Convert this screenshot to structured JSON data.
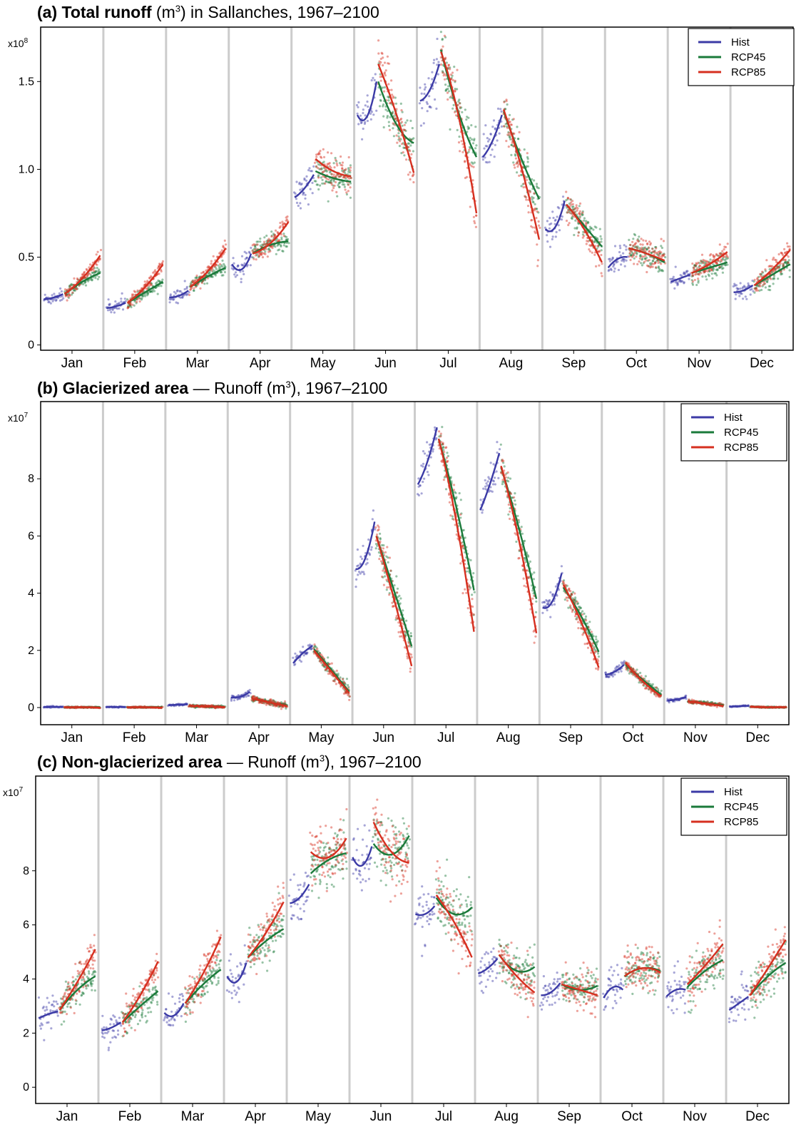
{
  "colors": {
    "hist": "#3b3aa6",
    "rcp45": "#1a7a3a",
    "rcp85": "#d62f1f",
    "separator": "#cccccc"
  },
  "legend": [
    "Hist",
    "RCP45",
    "RCP85"
  ],
  "months": [
    "Jan",
    "Feb",
    "Mar",
    "Apr",
    "May",
    "Jun",
    "Jul",
    "Aug",
    "Sep",
    "Oct",
    "Nov",
    "Dec"
  ],
  "panels": [
    {
      "title_bold": "(a) Total runoff",
      "title_rest": " (m",
      "title_sup": "3",
      "title_tail": ") in Sallanches, 1967–2100",
      "multiplier_base": "x10",
      "multiplier_exp": "8"
    },
    {
      "title_bold": "(b) Glacierized area",
      "title_rest": " — Runoff (m",
      "title_sup": "3",
      "title_tail": "), 1967–2100",
      "multiplier_base": "x10",
      "multiplier_exp": "7"
    },
    {
      "title_bold": "(c) Non-glacierized area",
      "title_rest": " — Runoff (m",
      "title_sup": "3",
      "title_tail": "), 1967–2100",
      "multiplier_base": "x10",
      "multiplier_exp": "7"
    }
  ],
  "chart_data": [
    {
      "type": "scatter",
      "title": "(a) Total runoff (m3) in Sallanches, 1967–2100",
      "categories": [
        "Jan",
        "Feb",
        "Mar",
        "Apr",
        "May",
        "Jun",
        "Jul",
        "Aug",
        "Sep",
        "Oct",
        "Nov",
        "Dec"
      ],
      "y_multiplier": "x10^8",
      "ylim": [
        -0.03,
        1.81
      ],
      "yticks": [
        0,
        0.5,
        1.0,
        1.5
      ],
      "ytick_labels": [
        "0",
        "0.5",
        "1.0",
        "1.5"
      ],
      "legend_position": "top-right",
      "grid": false,
      "x_within_month": "year 1967–2100",
      "series": [
        {
          "name": "Hist",
          "period": [
            1967,
            2005
          ],
          "start": [
            0.26,
            0.21,
            0.27,
            0.46,
            0.84,
            1.31,
            1.39,
            1.07,
            0.66,
            0.44,
            0.36,
            0.3
          ],
          "mid": [
            0.27,
            0.22,
            0.28,
            0.43,
            0.89,
            1.3,
            1.45,
            1.16,
            0.67,
            0.49,
            0.38,
            0.31
          ],
          "end": [
            0.29,
            0.24,
            0.31,
            0.52,
            0.97,
            1.5,
            1.6,
            1.31,
            0.82,
            0.5,
            0.4,
            0.34
          ]
        },
        {
          "name": "RCP45",
          "period": [
            2006,
            2100
          ],
          "start": [
            0.29,
            0.24,
            0.33,
            0.52,
            0.99,
            1.5,
            1.68,
            1.33,
            0.8,
            0.55,
            0.41,
            0.34
          ],
          "mid": [
            0.36,
            0.3,
            0.39,
            0.57,
            0.95,
            1.26,
            1.32,
            1.06,
            0.68,
            0.52,
            0.44,
            0.4
          ],
          "end": [
            0.41,
            0.36,
            0.44,
            0.59,
            0.93,
            1.15,
            1.07,
            0.83,
            0.56,
            0.47,
            0.47,
            0.46
          ]
        },
        {
          "name": "RCP85",
          "period": [
            2006,
            2100
          ],
          "start": [
            0.29,
            0.24,
            0.33,
            0.52,
            1.06,
            1.6,
            1.67,
            1.34,
            0.8,
            0.55,
            0.41,
            0.34
          ],
          "mid": [
            0.38,
            0.33,
            0.42,
            0.58,
            0.99,
            1.32,
            1.3,
            1.01,
            0.66,
            0.52,
            0.46,
            0.43
          ],
          "end": [
            0.51,
            0.46,
            0.55,
            0.7,
            0.96,
            0.98,
            0.75,
            0.6,
            0.47,
            0.48,
            0.53,
            0.54
          ]
        }
      ],
      "point_spread": [
        0.018,
        0.016,
        0.02,
        0.03,
        0.05,
        0.07,
        0.07,
        0.06,
        0.04,
        0.04,
        0.03,
        0.03
      ]
    },
    {
      "type": "scatter",
      "title": "(b) Glacierized area — Runoff (m3), 1967–2100",
      "categories": [
        "Jan",
        "Feb",
        "Mar",
        "Apr",
        "May",
        "Jun",
        "Jul",
        "Aug",
        "Sep",
        "Oct",
        "Nov",
        "Dec"
      ],
      "y_multiplier": "x10^7",
      "ylim": [
        -0.6,
        10.7
      ],
      "yticks": [
        0,
        2,
        4,
        6,
        8
      ],
      "ytick_labels": [
        "0",
        "2",
        "4",
        "6",
        "8"
      ],
      "legend_position": "top-right",
      "grid": false,
      "x_within_month": "year 1967–2100",
      "series": [
        {
          "name": "Hist",
          "period": [
            1967,
            2005
          ],
          "start": [
            0.02,
            0.02,
            0.08,
            0.35,
            1.55,
            4.85,
            7.8,
            6.9,
            3.5,
            1.15,
            0.25,
            0.03
          ],
          "mid": [
            0.02,
            0.02,
            0.1,
            0.38,
            1.9,
            5.2,
            8.6,
            7.8,
            3.7,
            1.25,
            0.28,
            0.05
          ],
          "end": [
            0.02,
            0.02,
            0.11,
            0.55,
            2.15,
            6.5,
            9.8,
            8.9,
            4.7,
            1.5,
            0.37,
            0.06
          ]
        },
        {
          "name": "RCP45",
          "period": [
            2006,
            2100
          ],
          "start": [
            0.01,
            0.01,
            0.06,
            0.32,
            2.05,
            6.0,
            9.4,
            8.4,
            4.2,
            1.5,
            0.22,
            0.03
          ],
          "mid": [
            0.01,
            0.01,
            0.04,
            0.18,
            1.3,
            4.1,
            7.0,
            6.3,
            3.2,
            0.95,
            0.15,
            0.01
          ],
          "end": [
            0.01,
            0.01,
            0.03,
            0.08,
            0.55,
            2.15,
            4.1,
            3.8,
            1.95,
            0.45,
            0.08,
            0.01
          ]
        },
        {
          "name": "RCP85",
          "period": [
            2006,
            2100
          ],
          "start": [
            0.01,
            0.01,
            0.06,
            0.32,
            2.0,
            6.0,
            9.4,
            8.45,
            4.3,
            1.55,
            0.22,
            0.03
          ],
          "mid": [
            0.01,
            0.01,
            0.04,
            0.18,
            1.25,
            3.8,
            6.5,
            5.9,
            3.0,
            0.9,
            0.14,
            0.01
          ],
          "end": [
            0.0,
            0.0,
            0.02,
            0.06,
            0.5,
            1.45,
            2.65,
            2.6,
            1.4,
            0.4,
            0.06,
            0.01
          ]
        }
      ],
      "point_spread": [
        0.01,
        0.01,
        0.02,
        0.05,
        0.12,
        0.3,
        0.35,
        0.3,
        0.2,
        0.08,
        0.03,
        0.01
      ]
    },
    {
      "type": "scatter",
      "title": "(c) Non-glacierized area — Runoff (m3), 1967–2100",
      "categories": [
        "Jan",
        "Feb",
        "Mar",
        "Apr",
        "May",
        "Jun",
        "Jul",
        "Aug",
        "Sep",
        "Oct",
        "Nov",
        "Dec"
      ],
      "y_multiplier": "x10^7",
      "ylim": [
        -0.6,
        11.5
      ],
      "yticks": [
        0,
        2,
        4,
        6,
        8
      ],
      "ytick_labels": [
        "0",
        "2",
        "4",
        "6",
        "8"
      ],
      "legend_position": "top-right",
      "grid": false,
      "x_within_month": "year 1967–2100",
      "series": [
        {
          "name": "Hist",
          "period": [
            1967,
            2005
          ],
          "start": [
            2.55,
            2.1,
            2.75,
            4.1,
            6.8,
            8.5,
            6.4,
            4.2,
            3.4,
            3.3,
            3.35,
            2.85
          ],
          "mid": [
            2.7,
            2.2,
            2.65,
            3.9,
            7.0,
            8.2,
            6.4,
            4.4,
            3.5,
            3.7,
            3.6,
            3.1
          ],
          "end": [
            2.8,
            2.4,
            3.1,
            4.6,
            7.5,
            8.9,
            6.7,
            4.75,
            3.85,
            3.6,
            3.6,
            3.35
          ]
        },
        {
          "name": "RCP45",
          "period": [
            2006,
            2100
          ],
          "start": [
            2.85,
            2.4,
            3.1,
            4.8,
            7.9,
            9.0,
            7.0,
            4.9,
            3.8,
            4.1,
            3.7,
            3.4
          ],
          "mid": [
            3.6,
            3.0,
            3.8,
            5.4,
            8.4,
            8.6,
            6.4,
            4.3,
            3.6,
            4.4,
            4.3,
            4.1
          ],
          "end": [
            4.1,
            3.55,
            4.35,
            5.85,
            8.65,
            9.3,
            6.65,
            4.45,
            3.75,
            4.3,
            4.7,
            4.6
          ]
        },
        {
          "name": "RCP85",
          "period": [
            2006,
            2100
          ],
          "start": [
            2.85,
            2.4,
            3.1,
            4.8,
            8.7,
            9.8,
            7.1,
            4.9,
            3.8,
            4.1,
            3.8,
            3.4
          ],
          "mid": [
            3.9,
            3.4,
            4.2,
            5.7,
            8.5,
            8.7,
            6.1,
            4.1,
            3.6,
            4.4,
            4.5,
            4.4
          ],
          "end": [
            5.1,
            4.65,
            5.55,
            6.85,
            9.2,
            8.3,
            4.8,
            3.5,
            3.4,
            4.25,
            5.3,
            5.45
          ]
        }
      ],
      "point_spread": [
        0.3,
        0.3,
        0.3,
        0.4,
        0.5,
        0.6,
        0.5,
        0.4,
        0.35,
        0.4,
        0.4,
        0.4
      ]
    }
  ]
}
